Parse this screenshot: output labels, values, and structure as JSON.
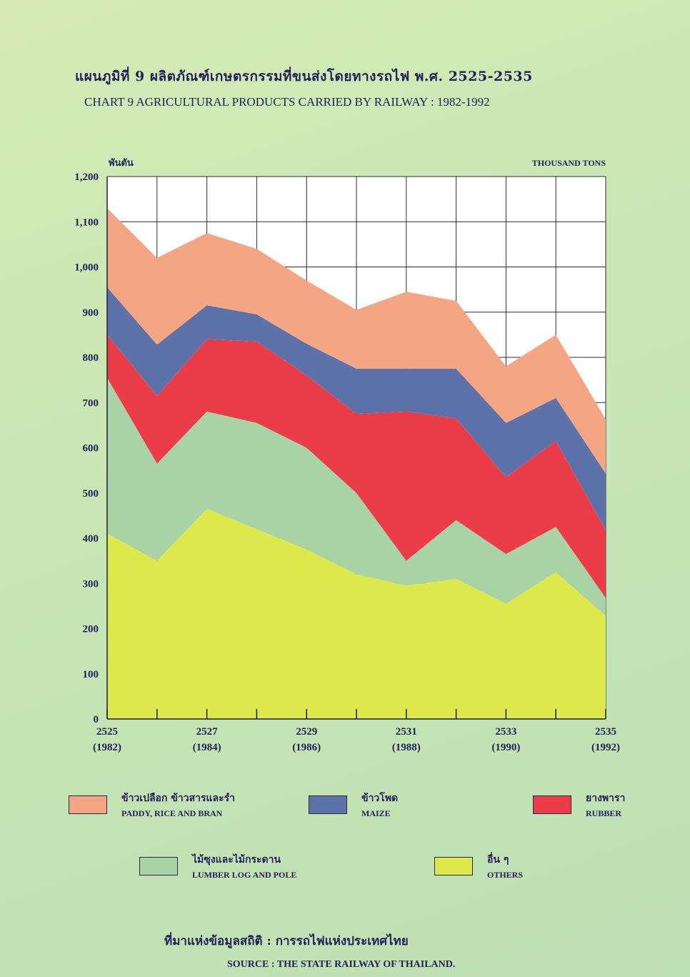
{
  "title_th": "แผนภูมิที่ 9 ผลิตภัณฑ์เกษตรกรรมที่ขนส่งโดยทางรถไฟ พ.ศ. 2525-2535",
  "title_en": "CHART 9 AGRICULTURAL PRODUCTS CARRIED BY RAILWAY : 1982-1992",
  "unit_th": "พันตัน",
  "unit_en": "THOUSAND TONS",
  "colors": {
    "paddy": "#f4a583",
    "maize": "#5c72a8",
    "rubber": "#ea3d49",
    "lumber": "#a9d3a4",
    "others": "#dde84c"
  },
  "legend": [
    {
      "key": "paddy",
      "th": "ข้าวเปลือก ข้าวสารและรำ",
      "en": "PADDY, RICE AND BRAN"
    },
    {
      "key": "maize",
      "th": "ข้าวโพด",
      "en": "MAIZE"
    },
    {
      "key": "rubber",
      "th": "ยางพารา",
      "en": "RUBBER"
    },
    {
      "key": "lumber",
      "th": "ไม้ซุงและไม้กระดาน",
      "en": "LUMBER LOG AND POLE"
    },
    {
      "key": "others",
      "th": "อื่น ๆ",
      "en": "OTHERS"
    }
  ],
  "source_th": "ที่มาแห่งข้อมูลสถิติ : การรถไฟแห่งประเทศไทย",
  "source_en": "SOURCE : THE STATE RAILWAY OF THAILAND.",
  "chart_data": {
    "type": "area",
    "stacked": true,
    "x": [
      2525,
      2526,
      2527,
      2528,
      2529,
      2530,
      2531,
      2532,
      2533,
      2534,
      2535
    ],
    "x_tick_labels": [
      {
        "top": "2525",
        "bottom": "(1982)"
      },
      {
        "top": "2527",
        "bottom": "(1984)"
      },
      {
        "top": "2529",
        "bottom": "(1986)"
      },
      {
        "top": "2531",
        "bottom": "(1988)"
      },
      {
        "top": "2533",
        "bottom": "(1990)"
      },
      {
        "top": "2535",
        "bottom": "(1992)"
      }
    ],
    "y_ticks": [
      0,
      100,
      200,
      300,
      400,
      500,
      600,
      700,
      800,
      900,
      1000,
      1100,
      1200
    ],
    "y_tick_labels": [
      "0",
      "100",
      "200",
      "300",
      "400",
      "500",
      "600",
      "700",
      "800",
      "900",
      "1,000",
      "1,100",
      "1,200"
    ],
    "ylim": [
      0,
      1200
    ],
    "grid": true,
    "series": [
      {
        "key": "others",
        "name": "OTHERS",
        "values": [
          410,
          350,
          465,
          420,
          375,
          320,
          295,
          310,
          255,
          325,
          228
        ]
      },
      {
        "key": "lumber",
        "name": "LUMBER LOG AND POLE",
        "values": [
          345,
          215,
          215,
          235,
          225,
          180,
          55,
          130,
          110,
          100,
          40
        ]
      },
      {
        "key": "rubber",
        "name": "RUBBER",
        "values": [
          95,
          150,
          160,
          180,
          160,
          175,
          330,
          225,
          170,
          190,
          150
        ]
      },
      {
        "key": "maize",
        "name": "MAIZE",
        "values": [
          105,
          113,
          75,
          60,
          70,
          100,
          95,
          110,
          120,
          95,
          125
        ]
      },
      {
        "key": "paddy",
        "name": "PADDY, RICE AND BRAN",
        "values": [
          175,
          192,
          160,
          145,
          140,
          130,
          170,
          150,
          125,
          140,
          120
        ]
      }
    ]
  }
}
